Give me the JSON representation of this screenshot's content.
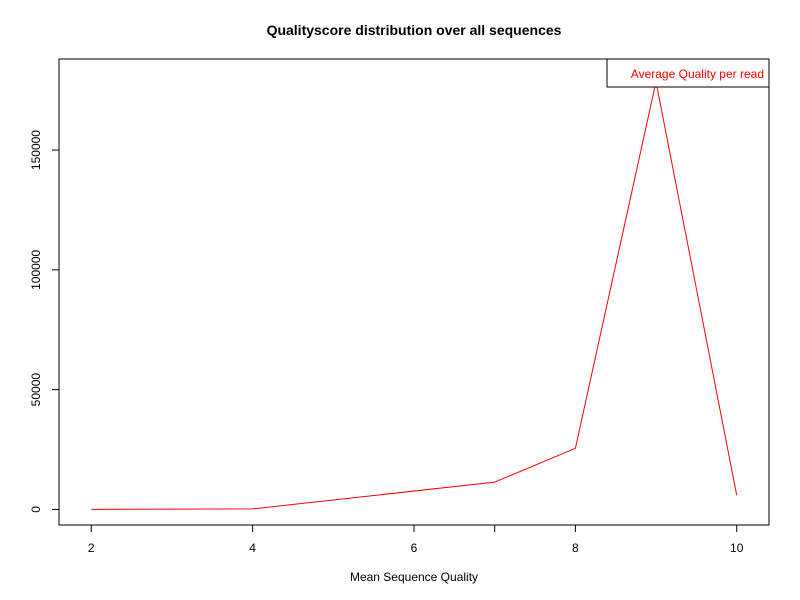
{
  "chart_data": {
    "type": "line",
    "title": "Qualityscore distribution over all sequences",
    "xlabel": "Mean Sequence Quality",
    "ylabel": "",
    "xlim": [
      1.6,
      10.4
    ],
    "ylim": [
      -6500,
      188000
    ],
    "x_ticks": [
      2,
      4,
      6,
      7,
      8,
      10
    ],
    "x_tick_labels": [
      "2",
      "4",
      "6",
      "8",
      "10"
    ],
    "x_tick_label_values": [
      2,
      4,
      6,
      8,
      10
    ],
    "y_ticks": [
      0,
      50000,
      100000,
      150000
    ],
    "y_tick_labels": [
      "0",
      "50000",
      "100000",
      "150000"
    ],
    "grid": false,
    "legend_position": "top-right",
    "series": [
      {
        "name": "Average Quality per read",
        "color": "#ff0000",
        "x": [
          2,
          4,
          7,
          8,
          9,
          10
        ],
        "y": [
          0,
          200,
          11400,
          25500,
          178500,
          6000
        ]
      }
    ]
  }
}
